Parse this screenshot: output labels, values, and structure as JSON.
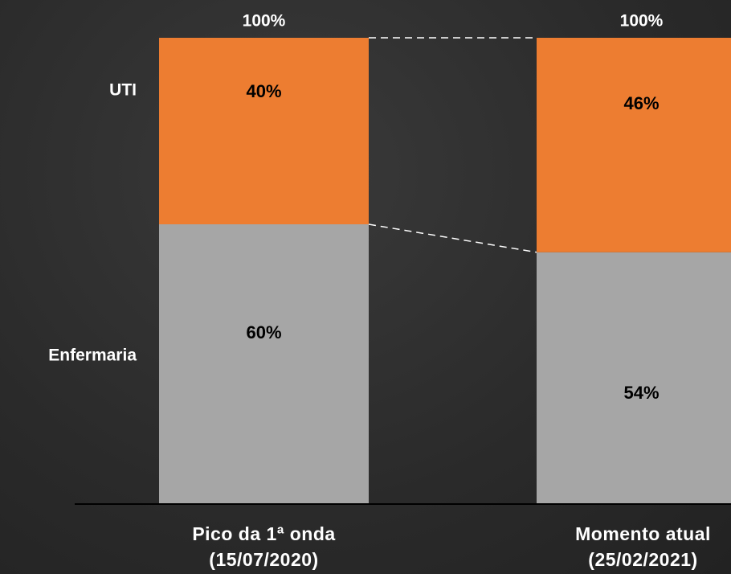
{
  "chart_data": {
    "type": "stacked_bar",
    "categories": [
      "Pico da 1ª onda\n(15/07/2020)",
      "Momento atual\n(25/02/2021)"
    ],
    "series": [
      {
        "name": "Enfermaria",
        "color": "#a6a6a6",
        "values": [
          60,
          54
        ],
        "value_labels": [
          "60%",
          "54%"
        ]
      },
      {
        "name": "UTI",
        "color": "#ed7d31",
        "values": [
          40,
          46
        ],
        "value_labels": [
          "40%",
          "46%"
        ]
      }
    ],
    "totals": [
      100,
      100
    ],
    "total_labels": [
      "100%",
      "100%"
    ],
    "ylim": [
      0,
      100
    ]
  }
}
